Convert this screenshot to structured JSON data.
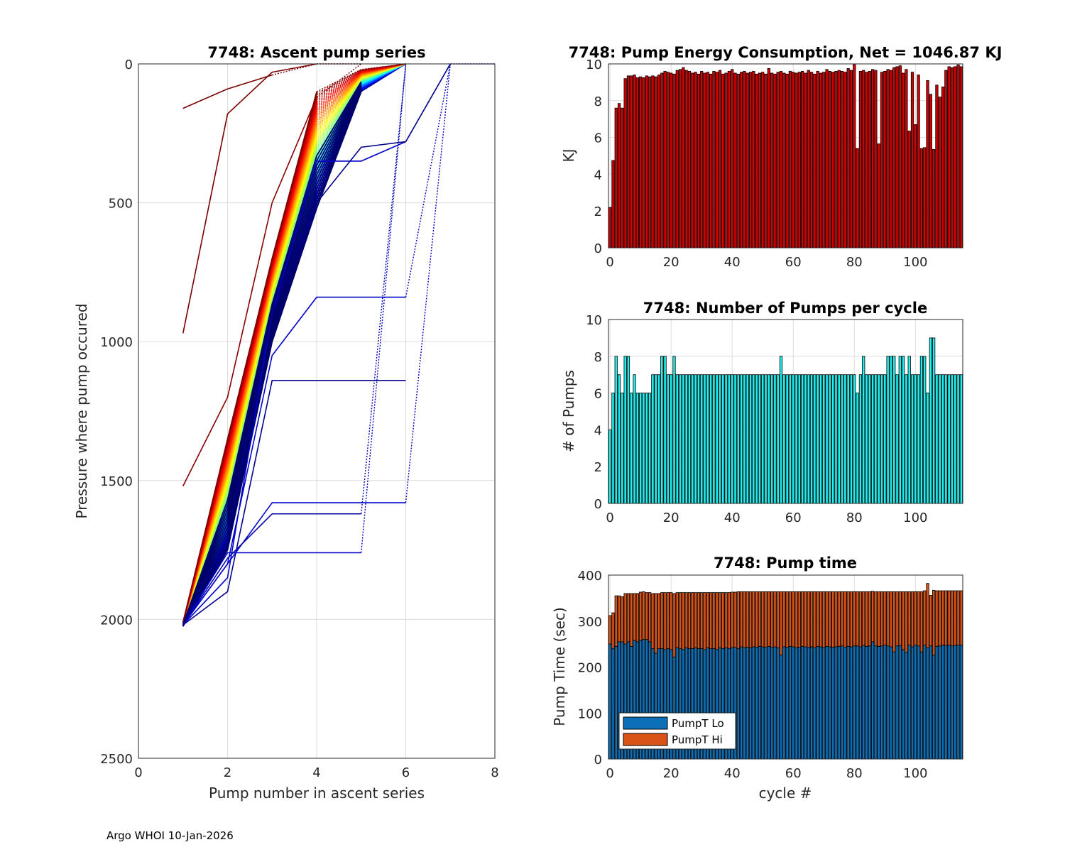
{
  "footer": "Argo WHOI 10-Jan-2026",
  "colors": {
    "energy_bar": "#d40000",
    "pumps_bar": "#22eeee",
    "pumpT_lo": "#0c6fb8",
    "pumpT_hi": "#d95319",
    "axis": "#262626",
    "grid": "#dcdcdc"
  },
  "chart_data": [
    {
      "id": "ascent",
      "type": "line",
      "title": "7748: Ascent pump series",
      "xlabel": "Pump number in ascent series",
      "ylabel": "Pressure where pump occured",
      "xlim": [
        0,
        8
      ],
      "ylim": [
        0,
        2500
      ],
      "y_reversed": true,
      "xticks": [
        0,
        2,
        4,
        6,
        8
      ],
      "yticks": [
        0,
        500,
        1000,
        1500,
        2000,
        2500
      ],
      "colormap": "jet (cycle order, dark blue = early cycles, dark red = late cycles)",
      "envelope": {
        "description": "approximate pressure of typical profiles at each pump step (dbar)",
        "step": [
          1,
          2,
          3,
          4,
          5,
          6
        ],
        "pressure_shallow_edge": [
          2010,
          1350,
          700,
          100,
          20,
          0
        ],
        "pressure_deep_edge": [
          2025,
          1750,
          1000,
          520,
          100,
          0
        ]
      },
      "notable_series": [
        {
          "x": [
            1,
            2,
            3,
            4
          ],
          "y": [
            160,
            90,
            40,
            0
          ]
        },
        {
          "x": [
            1,
            2,
            3,
            4,
            5
          ],
          "y": [
            970,
            180,
            30,
            0,
            0
          ]
        },
        {
          "x": [
            1,
            2,
            3,
            4,
            5
          ],
          "y": [
            1520,
            1200,
            500,
            120,
            0
          ]
        },
        {
          "x": [
            1,
            2,
            3,
            4,
            5,
            6,
            7
          ],
          "y": [
            2020,
            1800,
            1050,
            840,
            840,
            840,
            0
          ]
        },
        {
          "x": [
            1,
            2,
            3,
            4,
            5,
            6
          ],
          "y": [
            2020,
            1900,
            1140,
            1140,
            1140,
            1140
          ]
        },
        {
          "x": [
            1,
            2,
            3,
            4,
            5,
            6,
            7
          ],
          "y": [
            2020,
            1800,
            1580,
            1580,
            1580,
            1580,
            0
          ]
        },
        {
          "x": [
            1,
            2,
            3,
            4,
            5,
            6
          ],
          "y": [
            2020,
            1760,
            1760,
            1760,
            1760,
            0
          ]
        },
        {
          "x": [
            1,
            2,
            3,
            4,
            5,
            6
          ],
          "y": [
            2020,
            1780,
            1620,
            1620,
            1620,
            0
          ]
        },
        {
          "x": [
            1,
            2,
            3,
            4,
            5,
            6,
            7
          ],
          "y": [
            2020,
            1850,
            900,
            350,
            350,
            280,
            0
          ]
        },
        {
          "x": [
            1,
            2,
            3,
            4,
            5,
            6,
            7,
            8
          ],
          "y": [
            2020,
            1700,
            900,
            500,
            300,
            280,
            0,
            0
          ]
        }
      ]
    },
    {
      "id": "energy",
      "type": "bar",
      "title": "7748: Pump Energy Consumption,  Net = 1046.87 KJ",
      "xlabel": "",
      "ylabel": "KJ",
      "xlim": [
        -0.5,
        115.5
      ],
      "ylim": [
        0,
        10
      ],
      "xticks": [
        0,
        20,
        40,
        60,
        80,
        100
      ],
      "yticks": [
        0,
        2,
        4,
        6,
        8,
        10
      ],
      "x_start": 0,
      "values": [
        2.2,
        4.75,
        7.6,
        7.85,
        7.6,
        9.2,
        9.35,
        9.35,
        9.4,
        9.25,
        9.3,
        9.25,
        9.35,
        9.3,
        9.35,
        9.3,
        9.4,
        9.5,
        9.6,
        9.55,
        9.5,
        9.45,
        9.65,
        9.7,
        9.8,
        9.65,
        9.6,
        9.5,
        9.55,
        9.45,
        9.6,
        9.5,
        9.55,
        9.45,
        9.6,
        9.55,
        9.65,
        9.45,
        9.5,
        9.6,
        9.7,
        9.5,
        9.45,
        9.55,
        9.6,
        9.5,
        9.55,
        9.6,
        9.45,
        9.5,
        9.55,
        9.45,
        9.75,
        9.5,
        9.45,
        9.55,
        9.6,
        9.5,
        9.45,
        9.6,
        9.55,
        9.5,
        9.55,
        9.6,
        9.5,
        9.65,
        9.55,
        9.45,
        9.6,
        9.5,
        9.55,
        9.7,
        9.6,
        9.55,
        9.6,
        9.65,
        9.6,
        9.55,
        9.75,
        9.65,
        10.0,
        5.4,
        9.6,
        9.65,
        9.55,
        9.6,
        9.7,
        9.65,
        5.65,
        9.55,
        9.6,
        9.7,
        9.65,
        9.8,
        9.85,
        9.9,
        9.5,
        9.7,
        6.35,
        9.55,
        6.7,
        9.4,
        5.4,
        5.45,
        9.1,
        8.35,
        5.35,
        8.85,
        8.2,
        8.75,
        9.65,
        9.85,
        9.8,
        9.85,
        9.95,
        9.85
      ]
    },
    {
      "id": "pumps",
      "type": "bar",
      "title": "7748: Number of Pumps per cycle",
      "xlabel": "",
      "ylabel": "# of Pumps",
      "xlim": [
        -0.5,
        115.5
      ],
      "ylim": [
        0,
        10
      ],
      "xticks": [
        0,
        20,
        40,
        60,
        80,
        100
      ],
      "yticks": [
        0,
        2,
        4,
        6,
        8,
        10
      ],
      "x_start": 0,
      "values": [
        4,
        6,
        8,
        7,
        6,
        8,
        8,
        6,
        7,
        6,
        6,
        6,
        6,
        6,
        7,
        7,
        7,
        8,
        8,
        7,
        7,
        8,
        7,
        7,
        7,
        7,
        7,
        7,
        7,
        7,
        7,
        7,
        7,
        7,
        7,
        7,
        7,
        7,
        7,
        7,
        7,
        7,
        7,
        7,
        7,
        7,
        7,
        7,
        7,
        7,
        7,
        7,
        7,
        7,
        7,
        7,
        8,
        7,
        7,
        7,
        7,
        7,
        7,
        7,
        7,
        7,
        7,
        7,
        7,
        7,
        7,
        7,
        7,
        7,
        7,
        7,
        7,
        7,
        7,
        7,
        7,
        6,
        7,
        8,
        7,
        7,
        7,
        7,
        7,
        7,
        7,
        8,
        8,
        8,
        7,
        8,
        8,
        7,
        8,
        7,
        7,
        7,
        8,
        8,
        6,
        9,
        9,
        7,
        7,
        7,
        7,
        7,
        7,
        7,
        7,
        7
      ]
    },
    {
      "id": "pumptime",
      "type": "bar",
      "stacked": true,
      "title": "7748: Pump time",
      "xlabel": "cycle #",
      "ylabel": "Pump Time (sec)",
      "xlim": [
        -0.5,
        115.5
      ],
      "ylim": [
        0,
        400
      ],
      "xticks": [
        0,
        20,
        40,
        60,
        80,
        100
      ],
      "yticks": [
        0,
        100,
        200,
        300,
        400
      ],
      "x_start": 0,
      "legend_position": "bottom-left",
      "series": [
        {
          "name": "PumpT Lo",
          "values": [
            250,
            240,
            245,
            255,
            255,
            250,
            255,
            245,
            258,
            255,
            258,
            260,
            260,
            255,
            240,
            230,
            240,
            240,
            238,
            240,
            238,
            222,
            242,
            240,
            238,
            242,
            240,
            240,
            242,
            240,
            240,
            238,
            242,
            240,
            240,
            238,
            242,
            240,
            242,
            240,
            242,
            243,
            240,
            244,
            242,
            243,
            242,
            244,
            243,
            245,
            244,
            243,
            245,
            243,
            244,
            242,
            226,
            244,
            243,
            245,
            244,
            242,
            243,
            245,
            244,
            243,
            244,
            242,
            245,
            244,
            243,
            245,
            244,
            243,
            244,
            245,
            246,
            243,
            245,
            244,
            246,
            246,
            244,
            247,
            245,
            246,
            255,
            246,
            245,
            246,
            248,
            246,
            244,
            233,
            246,
            247,
            238,
            232,
            248,
            244,
            248,
            246,
            233,
            248,
            242,
            246,
            226,
            245,
            246,
            248,
            247,
            248,
            246,
            247,
            248,
            248
          ]
        },
        {
          "name": "PumpT Hi",
          "values": [
            62,
            78,
            110,
            100,
            98,
            110,
            105,
            115,
            102,
            105,
            105,
            104,
            102,
            107,
            120,
            130,
            120,
            122,
            124,
            122,
            124,
            138,
            120,
            122,
            124,
            120,
            122,
            122,
            120,
            122,
            122,
            124,
            120,
            122,
            122,
            124,
            120,
            122,
            120,
            122,
            121,
            120,
            124,
            120,
            122,
            121,
            122,
            120,
            121,
            119,
            120,
            121,
            119,
            121,
            120,
            122,
            138,
            120,
            121,
            119,
            120,
            122,
            121,
            119,
            120,
            121,
            120,
            122,
            119,
            120,
            121,
            119,
            120,
            121,
            120,
            119,
            118,
            121,
            119,
            120,
            118,
            118,
            120,
            117,
            119,
            118,
            110,
            118,
            119,
            118,
            116,
            118,
            120,
            131,
            118,
            117,
            126,
            132,
            116,
            120,
            116,
            118,
            131,
            118,
            140,
            110,
            141,
            121,
            120,
            118,
            119,
            118,
            120,
            119,
            118,
            118
          ]
        }
      ]
    }
  ]
}
